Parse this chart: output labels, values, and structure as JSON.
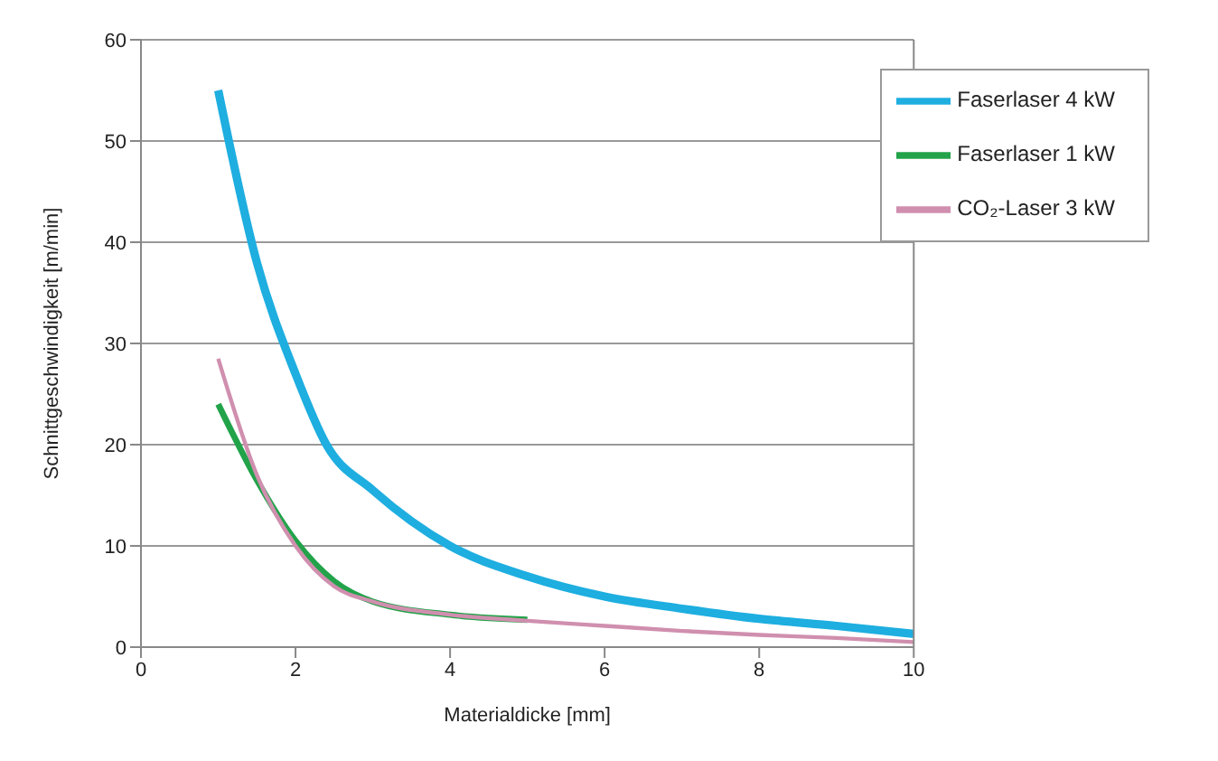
{
  "chart_data": {
    "type": "line",
    "xlabel": "Materialdicke [mm]",
    "ylabel": "Schnittgeschwindigkeit [m/min]",
    "xlim": [
      0,
      10
    ],
    "xticks": [
      0,
      2,
      4,
      6,
      8,
      10
    ],
    "ylim": [
      0,
      60
    ],
    "yticks": [
      0,
      10,
      20,
      30,
      40,
      50,
      60
    ],
    "grid": "y",
    "legend": "top right",
    "marker": "none",
    "line_style": "solid",
    "series": [
      {
        "name": "Faserlaser 4 kW",
        "color": "#1eaee0",
        "x": [
          1,
          1.5,
          2,
          2.4,
          3,
          4,
          5,
          6,
          7,
          8,
          9,
          10
        ],
        "values": [
          55,
          38,
          27,
          20,
          15.5,
          10,
          7,
          5,
          3.8,
          2.8,
          2.1,
          1.3
        ]
      },
      {
        "name": "Faserlaser 1 kW",
        "color": "#22a34a",
        "x": [
          1,
          1.5,
          2,
          2.5,
          3,
          4,
          5
        ],
        "values": [
          24,
          16.5,
          10.5,
          6.5,
          4.5,
          3.2,
          2.7
        ]
      },
      {
        "name": "CO₂-Laser 3 kW",
        "color": "#d08fae",
        "x": [
          1,
          1.5,
          2,
          2.5,
          3,
          4,
          5,
          6,
          7,
          8,
          9,
          10
        ],
        "values": [
          28.5,
          17,
          10,
          6,
          4.5,
          3.2,
          2.6,
          2.1,
          1.6,
          1.2,
          0.9,
          0.5
        ]
      }
    ]
  }
}
